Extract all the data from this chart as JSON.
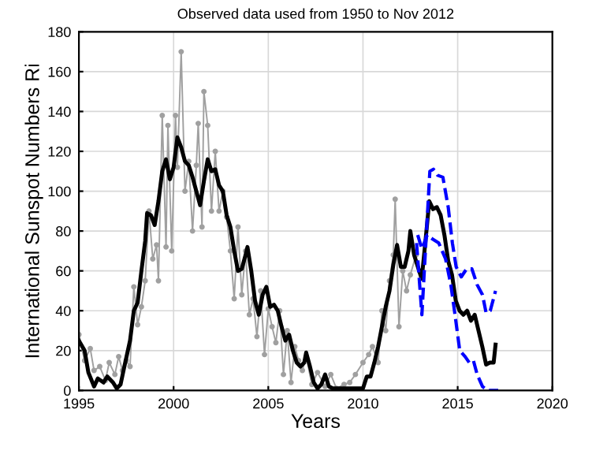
{
  "chart_data": {
    "type": "line",
    "title": "Observed data used from 1950 to Nov 2012",
    "xlabel": "Years",
    "ylabel": "International Sunspot Numbers Ri",
    "xlim": [
      1995,
      2020
    ],
    "xticks": [
      1995,
      2000,
      2005,
      2010,
      2015,
      2020
    ],
    "ylim": [
      0,
      180
    ],
    "yticks": [
      0,
      20,
      40,
      60,
      80,
      100,
      120,
      140,
      160,
      180
    ],
    "grid": true,
    "series": [
      {
        "color": "#a0a0a0",
        "marker": "circle",
        "line_style": "solid",
        "x": [
          1995.0,
          1995.3,
          1995.6,
          1995.8,
          1996.1,
          1996.4,
          1996.6,
          1996.9,
          1997.1,
          1997.3,
          1997.5,
          1997.7,
          1997.9,
          1998.1,
          1998.3,
          1998.5,
          1998.7,
          1998.9,
          1999.1,
          1999.2,
          1999.4,
          1999.6,
          1999.7,
          1999.9,
          2000.1,
          2000.2,
          2000.4,
          2000.6,
          2000.8,
          2001.0,
          2001.2,
          2001.3,
          2001.5,
          2001.6,
          2001.8,
          2002.0,
          2002.2,
          2002.4,
          2002.6,
          2002.8,
          2003.0,
          2003.2,
          2003.4,
          2003.6,
          2003.8,
          2004.0,
          2004.2,
          2004.4,
          2004.6,
          2004.8,
          2005.0,
          2005.2,
          2005.4,
          2005.6,
          2005.8,
          2006.0,
          2006.2,
          2006.4,
          2006.6,
          2006.8,
          2007.0,
          2007.3,
          2007.6,
          2008.0,
          2008.3,
          2008.6,
          2009.0,
          2009.3,
          2009.6,
          2010.0,
          2010.3,
          2010.5,
          2010.8,
          2011.0,
          2011.2,
          2011.4,
          2011.6,
          2011.7,
          2011.9,
          2012.1,
          2012.3,
          2012.5,
          2012.8
        ],
        "values": [
          28,
          15,
          21,
          10,
          12,
          5,
          14,
          8,
          17,
          10,
          15,
          12,
          52,
          33,
          42,
          55,
          90,
          66,
          73,
          55,
          138,
          72,
          133,
          70,
          138,
          112,
          170,
          100,
          115,
          80,
          113,
          134,
          82,
          150,
          133,
          90,
          120,
          90,
          100,
          87,
          70,
          46,
          82,
          48,
          70,
          38,
          46,
          27,
          50,
          18,
          41,
          32,
          24,
          40,
          8,
          30,
          4,
          22,
          15,
          10,
          17,
          3,
          9,
          2,
          8,
          1,
          3,
          4,
          8,
          14,
          18,
          22,
          14,
          40,
          30,
          55,
          68,
          96,
          32,
          60,
          50,
          58,
          68
        ]
      },
      {
        "color": "#000000",
        "marker": "none",
        "line_style": "solid",
        "x": [
          1995.0,
          1995.3,
          1995.5,
          1995.8,
          1996.0,
          1996.3,
          1996.5,
          1996.8,
          1997.0,
          1997.2,
          1997.4,
          1997.7,
          1997.9,
          1998.1,
          1998.3,
          1998.5,
          1998.6,
          1998.8,
          1999.0,
          1999.2,
          1999.4,
          1999.6,
          1999.8,
          2000.0,
          2000.2,
          2000.4,
          2000.6,
          2000.8,
          2001.0,
          2001.2,
          2001.4,
          2001.6,
          2001.8,
          2002.0,
          2002.2,
          2002.4,
          2002.6,
          2002.8,
          2003.0,
          2003.2,
          2003.4,
          2003.6,
          2003.8,
          2003.9,
          2004.1,
          2004.3,
          2004.5,
          2004.7,
          2004.9,
          2005.1,
          2005.3,
          2005.5,
          2005.7,
          2005.9,
          2006.1,
          2006.3,
          2006.5,
          2006.7,
          2006.9,
          2007.0,
          2007.2,
          2007.4,
          2007.6,
          2007.8,
          2008.0,
          2008.2,
          2008.4,
          2009.0,
          2010.0,
          2010.2,
          2010.4,
          2010.6,
          2010.8,
          2011.0,
          2011.2,
          2011.4,
          2011.6,
          2011.8,
          2012.0,
          2012.2,
          2012.4,
          2012.5,
          2012.7,
          2012.9,
          2013.1,
          2013.3,
          2013.5,
          2013.7,
          2013.9,
          2014.1,
          2014.3,
          2014.5,
          2014.7,
          2014.9,
          2015.1,
          2015.3,
          2015.5,
          2015.7,
          2015.9,
          2016.1,
          2016.3,
          2016.5,
          2016.7,
          2016.9,
          2017.0
        ],
        "values": [
          25,
          20,
          9,
          2,
          6,
          4,
          7,
          4,
          1,
          3,
          12,
          25,
          40,
          44,
          60,
          75,
          89,
          88,
          83,
          95,
          110,
          116,
          106,
          112,
          127,
          122,
          115,
          113,
          107,
          100,
          93,
          105,
          116,
          110,
          111,
          103,
          100,
          88,
          82,
          70,
          60,
          61,
          68,
          72,
          60,
          45,
          38,
          48,
          52,
          42,
          43,
          40,
          32,
          25,
          28,
          20,
          14,
          12,
          14,
          19,
          12,
          4,
          1,
          3,
          8,
          2,
          1,
          1,
          1,
          7,
          7,
          14,
          22,
          32,
          42,
          50,
          63,
          73,
          62,
          62,
          70,
          80,
          68,
          62,
          56,
          75,
          95,
          91,
          92,
          88,
          78,
          65,
          58,
          45,
          40,
          38,
          40,
          35,
          38,
          30,
          22,
          13,
          14,
          14,
          23
        ]
      },
      {
        "color": "#0000ff",
        "marker": "none",
        "line_style": "dashed",
        "x": [
          2012.83,
          2013.11,
          2013.53,
          2013.72,
          2013.94,
          2014.22,
          2014.5,
          2014.72,
          2014.92,
          2015.19,
          2015.47,
          2015.75,
          2016.03,
          2016.31,
          2016.5,
          2016.72,
          2017.0
        ],
        "values": [
          74,
          38,
          110,
          111,
          108,
          107,
          92,
          74,
          62,
          57,
          61,
          61,
          53,
          48,
          39,
          40,
          50
        ]
      },
      {
        "color": "#0000ff",
        "marker": "none",
        "line_style": "dashed",
        "x": [
          2012.89,
          2013.11,
          2013.39,
          2013.67,
          2014.0,
          2014.36,
          2014.64,
          2014.83,
          2015.11,
          2015.39,
          2015.61,
          2015.83,
          2016.03,
          2016.31,
          2016.58,
          2017.14
        ],
        "values": [
          78,
          71,
          78,
          76,
          74,
          66,
          53,
          40,
          20,
          17,
          14,
          15,
          8,
          2,
          0,
          0
        ]
      }
    ]
  }
}
